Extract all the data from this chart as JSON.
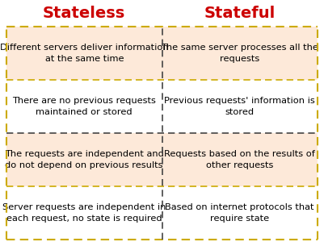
{
  "title_left": "Stateless",
  "title_right": "Stateful",
  "title_color": "#cc0000",
  "title_fontsize": 14,
  "cell_bg_color": "#fde9d9",
  "cell_text_color": "#000000",
  "cell_fontsize": 8.2,
  "border_color_outer": "#ccaa00",
  "border_color_inner": "#444444",
  "background_color": "#ffffff",
  "rows": [
    [
      "Different servers deliver information\nat the same time",
      "The same server processes all the\nrequests"
    ],
    [
      "There are no previous requests\nmaintained or stored",
      "Previous requests' information is\nstored"
    ],
    [
      "The requests are independent and\ndo not depend on previous results",
      "Requests based on the results of\nother requests"
    ],
    [
      "Server requests are independent in\neach request, no state is required",
      "Based on internet protocols that\nrequire state"
    ]
  ],
  "row_bg": [
    "#fde9d9",
    "#ffffff",
    "#fde9d9",
    "#ffffff"
  ],
  "row_border_color": [
    "#ccaa00",
    "#444444",
    "#ccaa00",
    "#444444"
  ]
}
